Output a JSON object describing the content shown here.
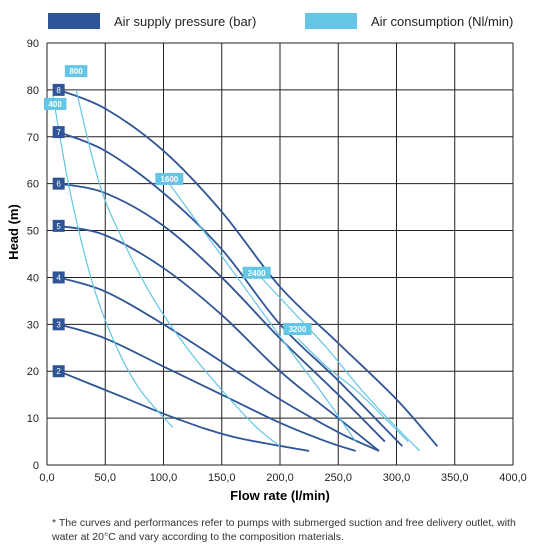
{
  "legend": {
    "air_label": "Air supply pressure (bar)",
    "air_color": "#2e5597",
    "cons_label": "Air consumption (Nl/min)",
    "cons_color": "#63c6e5"
  },
  "footnote": "* The curves and performances refer to pumps with submerged suction and free delivery outlet, with water at 20°C and vary according to the composition materials.",
  "chart_data": {
    "type": "line",
    "xlabel": "Flow rate (l/min)",
    "ylabel": "Head (m)",
    "xlim": [
      0,
      400
    ],
    "ylim": [
      0,
      90
    ],
    "x_ticks": [
      "0,0",
      "50,0",
      "100,0",
      "150,0",
      "200,0",
      "250,0",
      "300,0",
      "350,0",
      "400,0"
    ],
    "y_ticks": [
      "0",
      "10",
      "20",
      "30",
      "40",
      "50",
      "60",
      "70",
      "80",
      "90"
    ],
    "grid": true,
    "series": [
      {
        "name": "2",
        "group": "pressure",
        "points": [
          [
            10,
            20
          ],
          [
            60,
            15
          ],
          [
            110,
            10
          ],
          [
            160,
            6
          ],
          [
            225,
            3
          ]
        ]
      },
      {
        "name": "3",
        "group": "pressure",
        "points": [
          [
            10,
            30
          ],
          [
            50,
            27
          ],
          [
            100,
            21
          ],
          [
            150,
            15
          ],
          [
            200,
            9
          ],
          [
            240,
            5
          ],
          [
            265,
            3
          ]
        ]
      },
      {
        "name": "4",
        "group": "pressure",
        "points": [
          [
            10,
            40
          ],
          [
            50,
            37
          ],
          [
            100,
            30
          ],
          [
            150,
            22
          ],
          [
            200,
            14
          ],
          [
            250,
            7
          ],
          [
            285,
            3
          ]
        ]
      },
      {
        "name": "5",
        "group": "pressure",
        "points": [
          [
            10,
            51
          ],
          [
            50,
            49
          ],
          [
            100,
            42
          ],
          [
            150,
            32
          ],
          [
            200,
            20
          ],
          [
            250,
            10
          ],
          [
            285,
            3
          ]
        ]
      },
      {
        "name": "6",
        "group": "pressure",
        "points": [
          [
            10,
            60
          ],
          [
            50,
            58
          ],
          [
            100,
            51
          ],
          [
            150,
            40
          ],
          [
            200,
            27
          ],
          [
            250,
            15
          ],
          [
            290,
            5
          ]
        ]
      },
      {
        "name": "7",
        "group": "pressure",
        "points": [
          [
            10,
            71
          ],
          [
            50,
            67
          ],
          [
            100,
            58
          ],
          [
            150,
            46
          ],
          [
            200,
            30
          ],
          [
            250,
            18
          ],
          [
            305,
            4
          ]
        ]
      },
      {
        "name": "8",
        "group": "pressure",
        "points": [
          [
            10,
            80
          ],
          [
            50,
            76
          ],
          [
            100,
            67
          ],
          [
            150,
            54
          ],
          [
            200,
            38
          ],
          [
            250,
            26
          ],
          [
            300,
            14
          ],
          [
            335,
            4
          ]
        ]
      },
      {
        "name": "400",
        "group": "consumption",
        "points": [
          [
            5,
            79
          ],
          [
            20,
            58
          ],
          [
            40,
            38
          ],
          [
            60,
            25
          ],
          [
            80,
            16
          ],
          [
            108,
            8
          ]
        ]
      },
      {
        "name": "800",
        "group": "consumption",
        "points": [
          [
            25,
            80
          ],
          [
            45,
            60
          ],
          [
            65,
            48
          ],
          [
            90,
            36
          ],
          [
            120,
            25
          ],
          [
            150,
            16
          ],
          [
            180,
            8
          ],
          [
            200,
            4
          ]
        ]
      },
      {
        "name": "1600",
        "group": "consumption",
        "points": [
          [
            105,
            60
          ],
          [
            140,
            48
          ],
          [
            175,
            36
          ],
          [
            210,
            24
          ],
          [
            240,
            14
          ],
          [
            265,
            5
          ]
        ]
      },
      {
        "name": "2400",
        "group": "consumption",
        "points": [
          [
            180,
            41
          ],
          [
            210,
            33
          ],
          [
            240,
            25
          ],
          [
            270,
            16
          ],
          [
            300,
            8
          ],
          [
            320,
            3
          ]
        ]
      },
      {
        "name": "3200",
        "group": "consumption",
        "points": [
          [
            215,
            27
          ],
          [
            240,
            21
          ],
          [
            265,
            16
          ],
          [
            290,
            10
          ],
          [
            310,
            5
          ]
        ]
      }
    ],
    "pressure_labels": [
      {
        "text": "2",
        "x": 10,
        "y": 20
      },
      {
        "text": "3",
        "x": 10,
        "y": 30
      },
      {
        "text": "4",
        "x": 10,
        "y": 40
      },
      {
        "text": "5",
        "x": 10,
        "y": 51
      },
      {
        "text": "6",
        "x": 10,
        "y": 60
      },
      {
        "text": "7",
        "x": 10,
        "y": 71
      },
      {
        "text": "8",
        "x": 10,
        "y": 80
      }
    ],
    "consumption_labels": [
      {
        "text": "800",
        "x": 25,
        "y": 84
      },
      {
        "text": "400",
        "x": 7,
        "y": 77
      },
      {
        "text": "1600",
        "x": 105,
        "y": 61
      },
      {
        "text": "2400",
        "x": 180,
        "y": 41
      },
      {
        "text": "3200",
        "x": 215,
        "y": 29
      }
    ]
  }
}
